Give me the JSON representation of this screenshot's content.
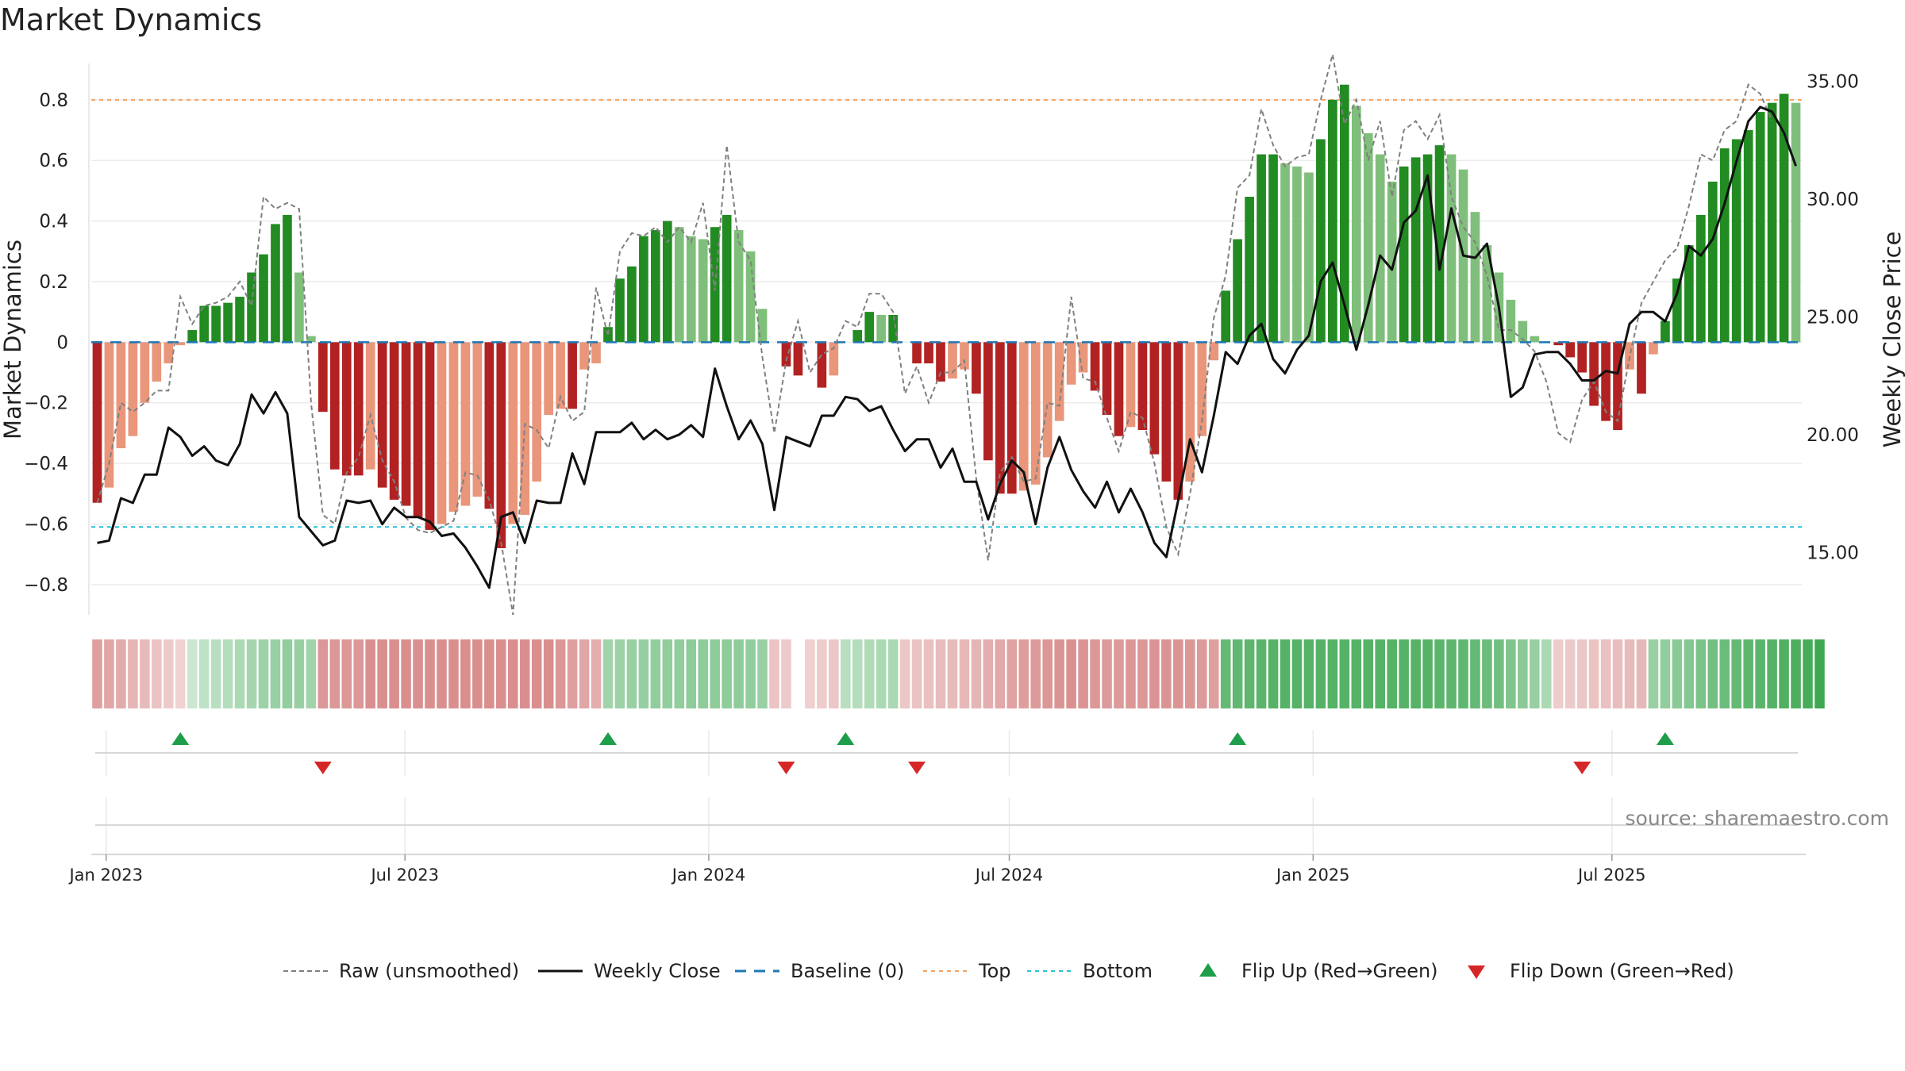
{
  "chart_data": {
    "type": "bar",
    "title": "Market Dynamics",
    "ylabel_left": "Market Dynamics",
    "ylabel_right": "Weekly Close Price",
    "ylim_left": [
      -0.9,
      0.92
    ],
    "ylim_right": [
      12.35,
      35.75
    ],
    "yticks_left": [
      "0.8",
      "0.6",
      "0.4",
      "0.2",
      "0",
      "−0.2",
      "−0.4",
      "−0.6",
      "−0.8"
    ],
    "yticks_right": [
      "35.00",
      "30.00",
      "25.00",
      "20.00",
      "15.00"
    ],
    "x_ticks": [
      "Jan 2023",
      "Jul 2023",
      "Jan 2024",
      "Jul 2024",
      "Jan 2025",
      "Jul 2025"
    ],
    "x_start": "2022-12-23",
    "x_end": "2025-10-24",
    "top_level": 0.8,
    "bottom_level": -0.61,
    "baseline": 0,
    "grid": true,
    "legend_position": "bottom",
    "bar_values": [
      -0.53,
      -0.48,
      -0.35,
      -0.31,
      -0.2,
      -0.13,
      -0.07,
      -0.01,
      0.04,
      0.12,
      0.12,
      0.13,
      0.15,
      0.23,
      0.29,
      0.39,
      0.42,
      0.23,
      0.02,
      -0.23,
      -0.42,
      -0.44,
      -0.44,
      -0.42,
      -0.48,
      -0.52,
      -0.54,
      -0.58,
      -0.62,
      -0.6,
      -0.56,
      -0.54,
      -0.51,
      -0.55,
      -0.68,
      -0.6,
      -0.57,
      -0.46,
      -0.24,
      -0.22,
      -0.22,
      -0.09,
      -0.07,
      0.05,
      0.21,
      0.25,
      0.35,
      0.37,
      0.4,
      0.38,
      0.35,
      0.34,
      0.38,
      0.42,
      0.37,
      0.3,
      0.11,
      0,
      -0.08,
      -0.11,
      0,
      -0.15,
      -0.11,
      0,
      0.04,
      0.1,
      0.09,
      0.09,
      0,
      -0.07,
      -0.07,
      -0.13,
      -0.12,
      -0.09,
      -0.17,
      -0.39,
      -0.5,
      -0.5,
      -0.49,
      -0.47,
      -0.38,
      -0.26,
      -0.14,
      -0.1,
      -0.16,
      -0.24,
      -0.31,
      -0.28,
      -0.29,
      -0.37,
      -0.46,
      -0.52,
      -0.46,
      -0.31,
      -0.06,
      0.17,
      0.34,
      0.48,
      0.62,
      0.62,
      0.59,
      0.58,
      0.56,
      0.67,
      0.8,
      0.85,
      0.78,
      0.69,
      0.62,
      0.53,
      0.58,
      0.61,
      0.62,
      0.65,
      0.62,
      0.57,
      0.43,
      0.32,
      0.23,
      0.14,
      0.07,
      0.02,
      0,
      -0.01,
      -0.05,
      -0.1,
      -0.21,
      -0.26,
      -0.29,
      -0.09,
      -0.17,
      -0.04,
      0.07,
      0.21,
      0.32,
      0.42,
      0.53,
      0.64,
      0.67,
      0.7,
      0.76,
      0.79,
      0.82,
      0.79
    ],
    "raw_values": [
      -0.53,
      -0.4,
      -0.2,
      -0.23,
      -0.2,
      -0.16,
      -0.16,
      0.15,
      0.06,
      0.12,
      0.13,
      0.15,
      0.2,
      0.12,
      0.48,
      0.44,
      0.46,
      0.44,
      -0.2,
      -0.57,
      -0.6,
      -0.43,
      -0.38,
      -0.24,
      -0.39,
      -0.46,
      -0.58,
      -0.62,
      -0.63,
      -0.61,
      -0.59,
      -0.43,
      -0.44,
      -0.52,
      -0.66,
      -0.9,
      -0.27,
      -0.29,
      -0.35,
      -0.18,
      -0.26,
      -0.23,
      0.18,
      0.02,
      0.3,
      0.36,
      0.35,
      0.38,
      0.33,
      0.38,
      0.33,
      0.46,
      0.17,
      0.65,
      0.33,
      0.27,
      -0.05,
      -0.3,
      -0.06,
      0.07,
      -0.1,
      -0.04,
      -0.02,
      0.07,
      0.05,
      0.16,
      0.16,
      0.1,
      -0.17,
      -0.08,
      -0.2,
      -0.1,
      -0.1,
      -0.06,
      -0.45,
      -0.72,
      -0.43,
      -0.38,
      -0.46,
      -0.45,
      -0.2,
      -0.21,
      0.15,
      -0.12,
      -0.13,
      -0.25,
      -0.36,
      -0.23,
      -0.25,
      -0.4,
      -0.61,
      -0.7,
      -0.5,
      -0.26,
      0.08,
      0.22,
      0.51,
      0.55,
      0.77,
      0.65,
      0.58,
      0.61,
      0.62,
      0.8,
      0.95,
      0.72,
      0.8,
      0.6,
      0.73,
      0.48,
      0.7,
      0.73,
      0.67,
      0.75,
      0.48,
      0.38,
      0.33,
      0.22,
      0.04,
      0.04,
      0.01,
      -0.03,
      -0.13,
      -0.3,
      -0.33,
      -0.19,
      -0.13,
      -0.23,
      -0.26,
      -0.05,
      0.13,
      0.2,
      0.27,
      0.31,
      0.45,
      0.62,
      0.6,
      0.7,
      0.73,
      0.85,
      0.82,
      0.73
    ],
    "weekly_close": [
      15.4,
      15.5,
      17.3,
      17.1,
      18.3,
      18.3,
      20.3,
      19.9,
      19.1,
      19.5,
      18.9,
      18.7,
      19.6,
      21.7,
      20.9,
      21.8,
      20.9,
      16.5,
      15.9,
      15.3,
      15.5,
      17.2,
      17.1,
      17.2,
      16.2,
      16.9,
      16.5,
      16.5,
      16.3,
      15.7,
      15.8,
      15.2,
      14.4,
      13.5,
      16.5,
      16.7,
      15.4,
      17.2,
      17.1,
      17.1,
      19.2,
      17.9,
      20.1,
      20.1,
      20.1,
      20.5,
      19.8,
      20.2,
      19.8,
      20,
      20.4,
      19.9,
      22.8,
      21.2,
      19.8,
      20.6,
      19.6,
      16.8,
      19.9,
      19.7,
      19.5,
      20.8,
      20.8,
      21.6,
      21.5,
      21,
      21.2,
      20.2,
      19.3,
      19.8,
      19.8,
      18.6,
      19.4,
      18,
      18,
      16.4,
      17.9,
      18.9,
      18.4,
      16.2,
      18.6,
      19.9,
      18.5,
      17.6,
      16.9,
      18,
      16.7,
      17.7,
      16.7,
      15.4,
      14.8,
      17.2,
      19.8,
      18.4,
      20.8,
      23.5,
      23,
      24.2,
      24.7,
      23.2,
      22.6,
      23.6,
      24.2,
      26.5,
      27.3,
      25.5,
      23.6,
      25.5,
      27.6,
      27,
      29,
      29.5,
      31,
      27,
      29.6,
      27.6,
      27.5,
      28.1,
      25.4,
      21.6,
      22,
      23.4,
      23.5,
      23.5,
      23,
      22.3,
      22.3,
      22.7,
      22.6,
      24.7,
      25.2,
      25.2,
      24.8,
      26,
      28,
      27.6,
      28.3,
      29.8,
      31.6,
      33.3,
      33.9,
      33.7,
      32.8,
      31.4
    ],
    "heat_values": [
      -0.45,
      -0.4,
      -0.36,
      -0.3,
      -0.26,
      -0.2,
      -0.16,
      -0.1,
      0.08,
      0.14,
      0.18,
      0.2,
      0.24,
      0.28,
      0.32,
      0.34,
      0.38,
      0.34,
      0.3,
      -0.5,
      -0.5,
      -0.5,
      -0.5,
      -0.55,
      -0.55,
      -0.55,
      -0.55,
      -0.55,
      -0.55,
      -0.55,
      -0.55,
      -0.55,
      -0.55,
      -0.55,
      -0.55,
      -0.55,
      -0.55,
      -0.55,
      -0.55,
      -0.5,
      -0.45,
      -0.4,
      -0.35,
      0.3,
      0.32,
      0.34,
      0.36,
      0.38,
      0.38,
      0.38,
      0.4,
      0.4,
      0.4,
      0.4,
      0.4,
      0.38,
      0.34,
      -0.2,
      -0.16,
      null,
      -0.12,
      -0.14,
      -0.18,
      0.18,
      0.2,
      0.22,
      0.24,
      0.25,
      -0.18,
      -0.2,
      -0.22,
      -0.24,
      -0.26,
      -0.28,
      -0.3,
      -0.34,
      -0.38,
      -0.42,
      -0.46,
      -0.48,
      -0.5,
      -0.52,
      -0.54,
      -0.52,
      -0.5,
      -0.48,
      -0.48,
      -0.5,
      -0.5,
      -0.52,
      -0.52,
      -0.52,
      -0.5,
      -0.48,
      -0.45,
      0.62,
      0.64,
      0.66,
      0.68,
      0.7,
      0.7,
      0.7,
      0.7,
      0.7,
      0.7,
      0.7,
      0.7,
      0.7,
      0.7,
      0.7,
      0.7,
      0.7,
      0.7,
      0.68,
      0.66,
      0.64,
      0.62,
      0.58,
      0.54,
      0.48,
      0.42,
      0.34,
      0.24,
      -0.14,
      -0.16,
      -0.18,
      -0.2,
      -0.22,
      -0.24,
      -0.26,
      -0.28,
      0.34,
      0.38,
      0.42,
      0.46,
      0.5,
      0.54,
      0.58,
      0.62,
      0.66,
      0.68,
      0.7,
      0.72,
      0.74,
      0.78,
      0.82
    ],
    "flip_up_weeks": [
      7,
      43,
      63,
      96,
      132
    ],
    "flip_down_weeks": [
      19,
      58,
      69,
      125
    ],
    "source": "source: sharemaestro.com",
    "legend": [
      {
        "label": "Raw (unsmoothed)",
        "style": "dashed-grey"
      },
      {
        "label": "Weekly Close",
        "style": "solid-black"
      },
      {
        "label": "Baseline (0)",
        "style": "dashed-blue"
      },
      {
        "label": "Top",
        "style": "dotted-orange"
      },
      {
        "label": "Bottom",
        "style": "dotted-cyan"
      },
      {
        "label": "Flip Up (Red→Green)",
        "style": "triangle-up-green"
      },
      {
        "label": "Flip Down (Green→Red)",
        "style": "triangle-down-red"
      }
    ],
    "colors": {
      "strong_green": "#228B22",
      "light_green": "#7FBF7B",
      "strong_red": "#B22222",
      "light_red": "#E9967A",
      "top_line": "#F4A460",
      "bottom_line": "#22C3D8",
      "baseline": "#1F77B4",
      "raw_line": "#808080",
      "close_line": "#111111",
      "flip_up": "#1E9E4A",
      "flip_down": "#D62728"
    }
  }
}
